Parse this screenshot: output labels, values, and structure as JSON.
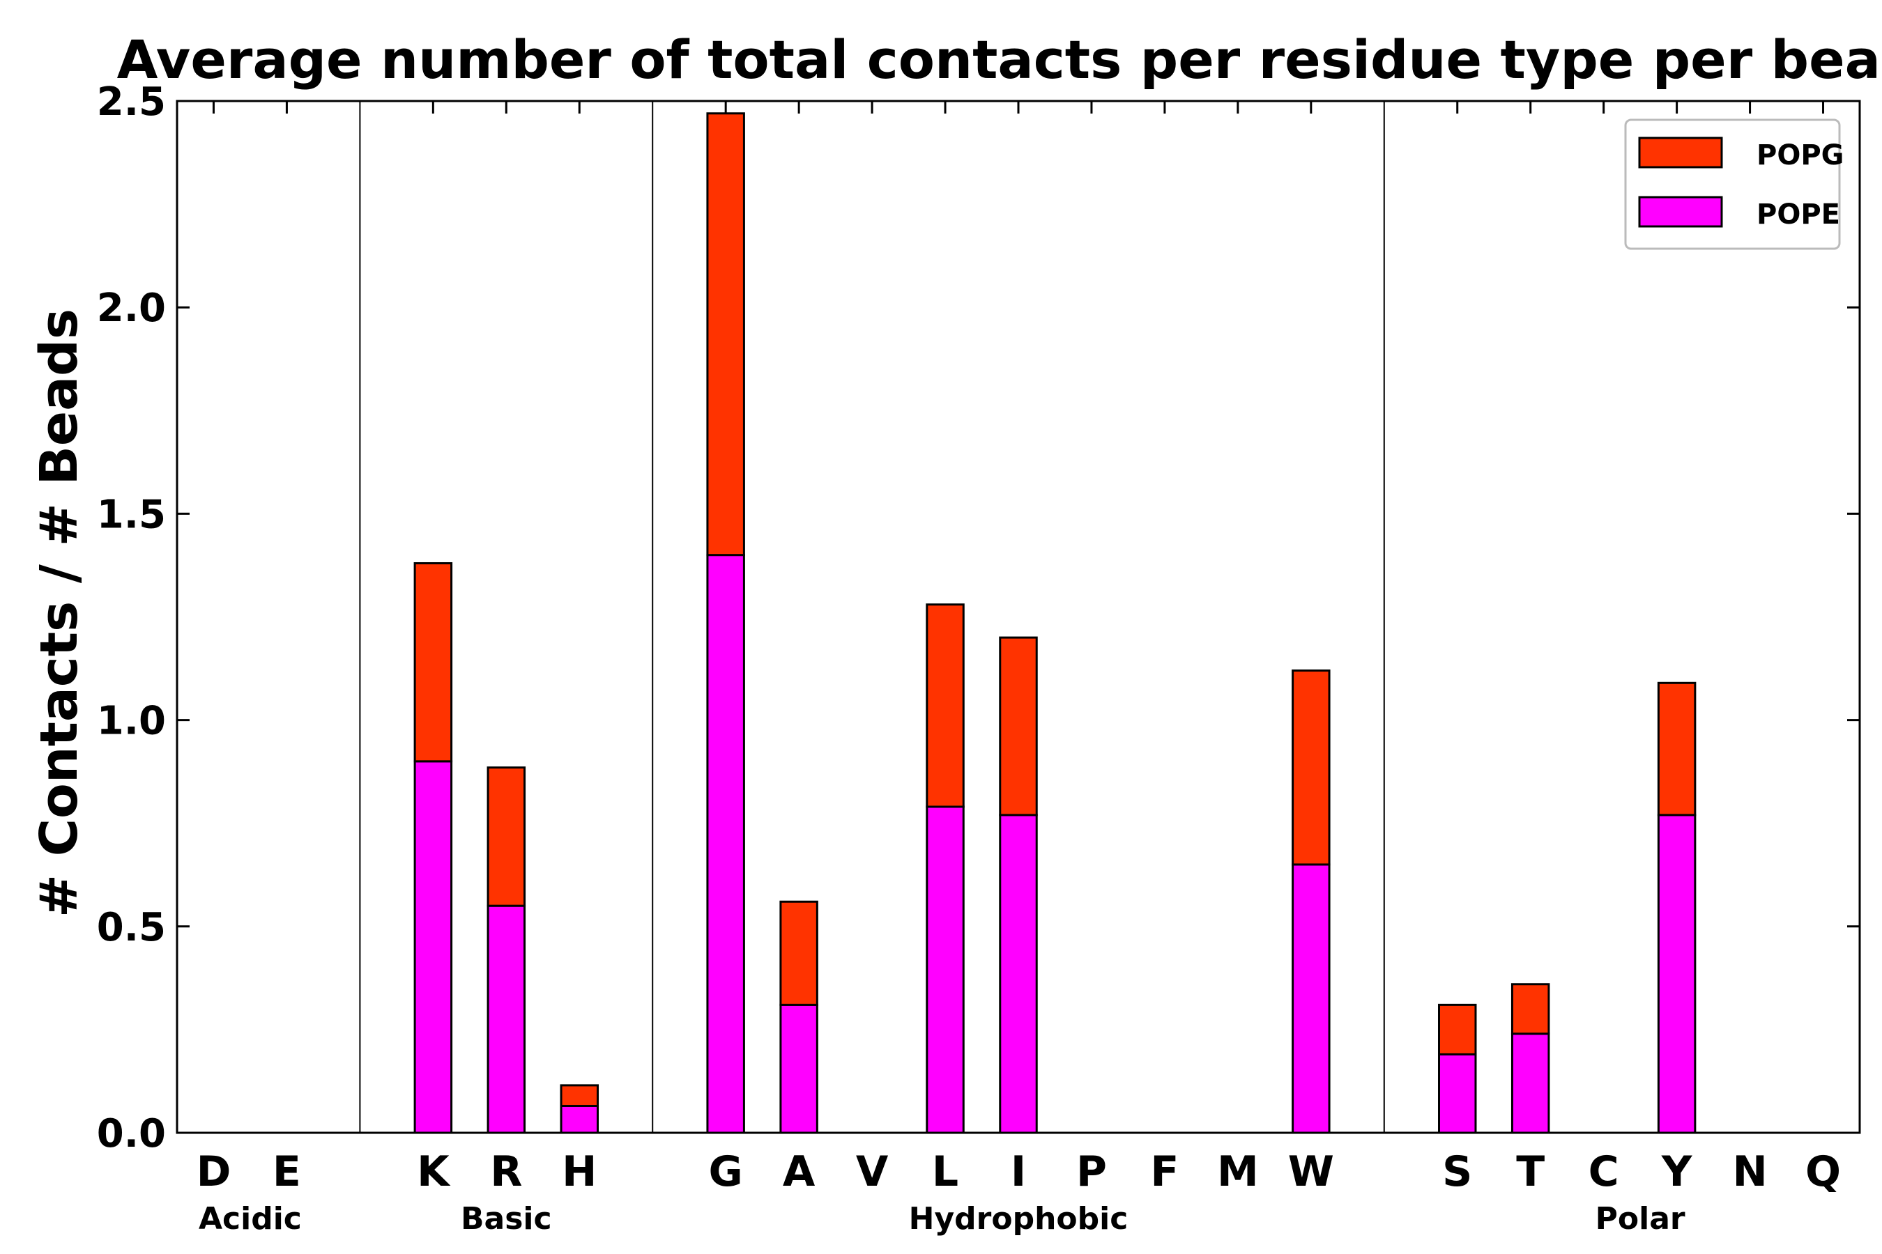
{
  "chart_data": {
    "type": "bar",
    "stacked": true,
    "title": "Average number of total contacts per residue type per bead",
    "xlabel": "",
    "ylabel": "# Contacts / # Beads",
    "ylim": [
      0,
      2.5
    ],
    "yticks": [
      "0.0",
      "0.5",
      "1.0",
      "1.5",
      "2.0",
      "2.5"
    ],
    "categories": [
      "D",
      "E",
      "",
      "K",
      "R",
      "H",
      "",
      "G",
      "A",
      "V",
      "L",
      "I",
      "P",
      "F",
      "M",
      "W",
      "",
      "S",
      "T",
      "C",
      "Y",
      "N",
      "Q"
    ],
    "series": [
      {
        "name": "POPE",
        "color": "#ff00ff",
        "values": [
          0,
          0,
          0,
          0.9,
          0.55,
          0.065,
          0,
          1.4,
          0.31,
          0,
          0.79,
          0.77,
          0,
          0,
          0,
          0.65,
          0,
          0.19,
          0.24,
          0,
          0.77,
          0,
          0
        ]
      },
      {
        "name": "POPG",
        "color": "#ff3300",
        "values": [
          0,
          0,
          0,
          0.48,
          0.335,
          0.05,
          0,
          1.07,
          0.25,
          0,
          0.49,
          0.43,
          0,
          0,
          0,
          0.47,
          0,
          0.12,
          0.12,
          0,
          0.32,
          0,
          0
        ]
      }
    ],
    "groups": [
      {
        "label": "Acidic",
        "first": 0,
        "last": 1
      },
      {
        "label": "Basic",
        "first": 3,
        "last": 5
      },
      {
        "label": "Hydrophobic",
        "first": 7,
        "last": 15
      },
      {
        "label": "Polar",
        "first": 17,
        "last": 22
      }
    ],
    "separators_after_index": [
      2,
      6,
      16
    ],
    "legend": {
      "position": "top-right",
      "entries": [
        "POPG",
        "POPE"
      ]
    },
    "grid": false
  }
}
